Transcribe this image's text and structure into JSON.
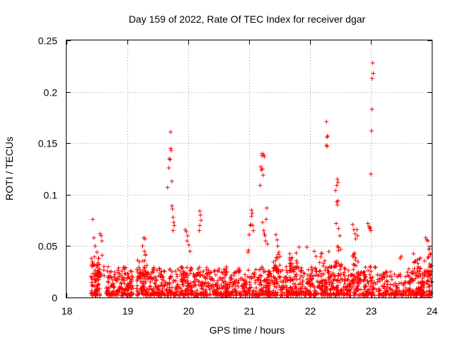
{
  "chart_data": {
    "type": "scatter",
    "title": "Day 159 of 2022, Rate Of TEC Index for receiver dgar",
    "xlabel": "GPS time / hours",
    "ylabel": "ROTI / TECUs",
    "xlim": [
      18,
      24
    ],
    "ylim": [
      0,
      0.25
    ],
    "x_ticks": [
      18,
      19,
      20,
      21,
      22,
      23,
      24
    ],
    "x_tick_labels": [
      "18",
      "19",
      "20",
      "21",
      "22",
      "23",
      "24"
    ],
    "y_ticks": [
      0,
      0.05,
      0.1,
      0.15,
      0.2,
      0.25
    ],
    "y_tick_labels": [
      "0",
      "0.05",
      "0.1",
      "0.15",
      "0.2",
      "0.25"
    ],
    "grid": true,
    "marker": "+",
    "marker_color": "#ff0000",
    "series": [
      {
        "name": "ROTI",
        "clusters": [
          {
            "x": [
              18.4,
              18.55
            ],
            "y": [
              0.002,
              0.035
            ],
            "n": 70
          },
          {
            "x": [
              18.65,
              18.95
            ],
            "y": [
              0.002,
              0.03
            ],
            "n": 110
          },
          {
            "x": [
              18.95,
              19.1
            ],
            "y": [
              0.002,
              0.03
            ],
            "n": 60
          },
          {
            "x": [
              19.15,
              19.45
            ],
            "y": [
              0.002,
              0.03
            ],
            "n": 110
          },
          {
            "x": [
              19.45,
              19.65
            ],
            "y": [
              0.002,
              0.03
            ],
            "n": 70
          },
          {
            "x": [
              19.65,
              19.95
            ],
            "y": [
              0.002,
              0.03
            ],
            "n": 100
          },
          {
            "x": [
              19.9,
              20.15
            ],
            "y": [
              0.002,
              0.03
            ],
            "n": 80
          },
          {
            "x": [
              20.15,
              20.45
            ],
            "y": [
              0.002,
              0.03
            ],
            "n": 100
          },
          {
            "x": [
              20.45,
              20.65
            ],
            "y": [
              0.002,
              0.028
            ],
            "n": 70
          },
          {
            "x": [
              20.6,
              20.85
            ],
            "y": [
              0.002,
              0.03
            ],
            "n": 80
          },
          {
            "x": [
              20.85,
              21.05
            ],
            "y": [
              0.002,
              0.03
            ],
            "n": 60
          },
          {
            "x": [
              21.05,
              21.35
            ],
            "y": [
              0.002,
              0.03
            ],
            "n": 100
          },
          {
            "x": [
              21.3,
              21.55
            ],
            "y": [
              0.002,
              0.03
            ],
            "n": 80
          },
          {
            "x": [
              21.55,
              21.85
            ],
            "y": [
              0.002,
              0.03
            ],
            "n": 100
          },
          {
            "x": [
              21.85,
              22.05
            ],
            "y": [
              0.002,
              0.03
            ],
            "n": 70
          },
          {
            "x": [
              22.05,
              22.35
            ],
            "y": [
              0.002,
              0.03
            ],
            "n": 100
          },
          {
            "x": [
              22.35,
              22.6
            ],
            "y": [
              0.002,
              0.03
            ],
            "n": 80
          },
          {
            "x": [
              22.6,
              22.85
            ],
            "y": [
              0.002,
              0.03
            ],
            "n": 90
          },
          {
            "x": [
              22.85,
              23.1
            ],
            "y": [
              0.002,
              0.03
            ],
            "n": 80
          },
          {
            "x": [
              23.1,
              23.35
            ],
            "y": [
              0.002,
              0.025
            ],
            "n": 70
          },
          {
            "x": [
              23.35,
              23.6
            ],
            "y": [
              0.002,
              0.025
            ],
            "n": 60
          },
          {
            "x": [
              23.6,
              23.85
            ],
            "y": [
              0.002,
              0.028
            ],
            "n": 80
          },
          {
            "x": [
              23.8,
              24.0
            ],
            "y": [
              0.002,
              0.03
            ],
            "n": 70
          },
          {
            "x": [
              18.4,
              18.62
            ],
            "y": [
              0.02,
              0.042
            ],
            "n": 25
          },
          {
            "x": [
              19.15,
              19.32
            ],
            "y": [
              0.02,
              0.045
            ],
            "n": 20
          },
          {
            "x": [
              21.4,
              21.52
            ],
            "y": [
              0.025,
              0.045
            ],
            "n": 20
          },
          {
            "x": [
              21.65,
              21.8
            ],
            "y": [
              0.025,
              0.045
            ],
            "n": 25
          },
          {
            "x": [
              22.15,
              22.35
            ],
            "y": [
              0.025,
              0.045
            ],
            "n": 15
          },
          {
            "x": [
              22.4,
              22.55
            ],
            "y": [
              0.03,
              0.05
            ],
            "n": 15
          },
          {
            "x": [
              22.7,
              22.8
            ],
            "y": [
              0.03,
              0.05
            ],
            "n": 10
          },
          {
            "x": [
              23.7,
              23.82
            ],
            "y": [
              0.028,
              0.045
            ],
            "n": 15
          },
          {
            "x": [
              23.88,
              24.0
            ],
            "y": [
              0.025,
              0.05
            ],
            "n": 15
          }
        ],
        "points": [
          [
            18.43,
            0.076
          ],
          [
            18.45,
            0.058
          ],
          [
            18.47,
            0.05
          ],
          [
            18.5,
            0.044
          ],
          [
            18.53,
            0.038
          ],
          [
            18.55,
            0.062
          ],
          [
            18.57,
            0.06
          ],
          [
            18.58,
            0.055
          ],
          [
            19.27,
            0.058
          ],
          [
            19.29,
            0.057
          ],
          [
            19.25,
            0.05
          ],
          [
            19.66,
            0.107
          ],
          [
            19.68,
            0.126
          ],
          [
            19.69,
            0.135
          ],
          [
            19.7,
            0.134
          ],
          [
            19.71,
            0.161
          ],
          [
            19.71,
            0.145
          ],
          [
            19.72,
            0.143
          ],
          [
            19.73,
            0.113
          ],
          [
            19.73,
            0.089
          ],
          [
            19.74,
            0.086
          ],
          [
            19.75,
            0.078
          ],
          [
            19.76,
            0.073
          ],
          [
            19.77,
            0.07
          ],
          [
            19.75,
            0.065
          ],
          [
            19.95,
            0.066
          ],
          [
            19.97,
            0.064
          ],
          [
            19.99,
            0.06
          ],
          [
            19.98,
            0.055
          ],
          [
            20.01,
            0.051
          ],
          [
            20.03,
            0.045
          ],
          [
            20.19,
            0.084
          ],
          [
            20.2,
            0.08
          ],
          [
            20.21,
            0.075
          ],
          [
            20.19,
            0.07
          ],
          [
            20.18,
            0.065
          ],
          [
            20.98,
            0.044
          ],
          [
            20.99,
            0.046
          ],
          [
            21.0,
            0.061
          ],
          [
            21.02,
            0.07
          ],
          [
            21.03,
            0.071
          ],
          [
            21.04,
            0.079
          ],
          [
            21.04,
            0.085
          ],
          [
            21.05,
            0.082
          ],
          [
            21.06,
            0.07
          ],
          [
            21.07,
            0.065
          ],
          [
            21.18,
            0.109
          ],
          [
            21.19,
            0.127
          ],
          [
            21.2,
            0.124
          ],
          [
            21.21,
            0.14
          ],
          [
            21.21,
            0.138
          ],
          [
            21.22,
            0.125
          ],
          [
            21.23,
            0.119
          ],
          [
            21.24,
            0.139
          ],
          [
            21.25,
            0.137
          ],
          [
            21.22,
            0.073
          ],
          [
            21.24,
            0.065
          ],
          [
            21.25,
            0.062
          ],
          [
            21.26,
            0.06
          ],
          [
            21.27,
            0.055
          ],
          [
            21.28,
            0.076
          ],
          [
            21.29,
            0.087
          ],
          [
            21.3,
            0.052
          ],
          [
            21.44,
            0.061
          ],
          [
            21.46,
            0.056
          ],
          [
            21.47,
            0.05
          ],
          [
            21.49,
            0.044
          ],
          [
            21.82,
            0.049
          ],
          [
            21.95,
            0.049
          ],
          [
            22.07,
            0.045
          ],
          [
            22.1,
            0.04
          ],
          [
            22.27,
            0.171
          ],
          [
            22.28,
            0.156
          ],
          [
            22.29,
            0.157
          ],
          [
            22.27,
            0.148
          ],
          [
            22.28,
            0.147
          ],
          [
            22.42,
            0.104
          ],
          [
            22.44,
            0.109
          ],
          [
            22.45,
            0.115
          ],
          [
            22.46,
            0.112
          ],
          [
            22.44,
            0.093
          ],
          [
            22.46,
            0.094
          ],
          [
            22.45,
            0.09
          ],
          [
            22.43,
            0.072
          ],
          [
            22.47,
            0.067
          ],
          [
            22.49,
            0.06
          ],
          [
            22.7,
            0.071
          ],
          [
            22.72,
            0.066
          ],
          [
            22.74,
            0.062
          ],
          [
            22.75,
            0.057
          ],
          [
            22.77,
            0.066
          ],
          [
            22.78,
            0.06
          ],
          [
            22.95,
            0.072
          ],
          [
            22.97,
            0.069
          ],
          [
            22.98,
            0.067
          ],
          [
            22.99,
            0.068
          ],
          [
            23.0,
            0.065
          ],
          [
            23.0,
            0.12
          ],
          [
            23.01,
            0.162
          ],
          [
            23.02,
            0.183
          ],
          [
            23.02,
            0.213
          ],
          [
            23.03,
            0.228
          ],
          [
            23.04,
            0.218
          ],
          [
            23.48,
            0.038
          ],
          [
            23.5,
            0.04
          ],
          [
            23.9,
            0.058
          ],
          [
            23.92,
            0.056
          ],
          [
            23.94,
            0.055
          ],
          [
            23.96,
            0.048
          ],
          [
            23.97,
            0.042
          ]
        ]
      }
    ]
  }
}
